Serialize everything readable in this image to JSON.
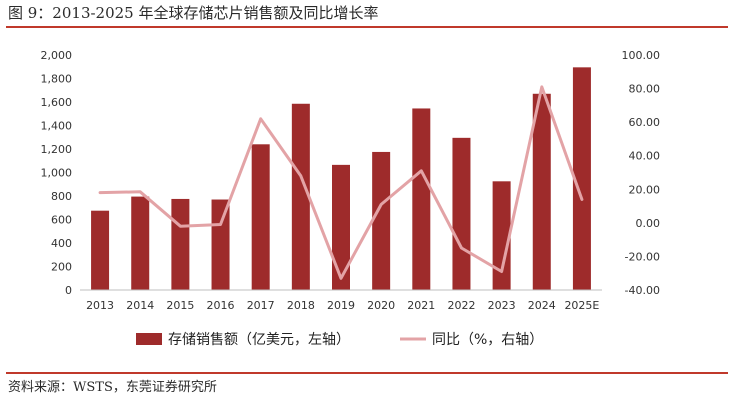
{
  "title": "图 9：2013-2025 年全球存储芯片销售额及同比增长率",
  "source": "资料来源：WSTS，东莞证券研究所",
  "colors": {
    "bar": "#9e2b2b",
    "line": "#e3a3a6",
    "rule": "#c0392b"
  },
  "chart_data": {
    "type": "bar+line",
    "categories": [
      "2013",
      "2014",
      "2015",
      "2016",
      "2017",
      "2018",
      "2019",
      "2020",
      "2021",
      "2022",
      "2023",
      "2024",
      "2025E"
    ],
    "series": [
      {
        "name": "存储销售额（亿美元，左轴）",
        "type": "bar",
        "axis": "left",
        "values": [
          675,
          795,
          775,
          770,
          1240,
          1585,
          1065,
          1175,
          1545,
          1295,
          925,
          1670,
          1895
        ]
      },
      {
        "name": "同比（%，右轴）",
        "type": "line",
        "axis": "right",
        "values": [
          18,
          18.5,
          -2,
          -1,
          62,
          28,
          -33,
          11,
          31,
          -15,
          -29,
          81,
          14
        ]
      }
    ],
    "left_axis": {
      "min": 0,
      "max": 2000,
      "step": 200,
      "tick_labels": [
        "0",
        "200",
        "400",
        "600",
        "800",
        "1,000",
        "1,200",
        "1,400",
        "1,600",
        "1,800",
        "2,000"
      ]
    },
    "right_axis": {
      "min": -40,
      "max": 100,
      "step": 20,
      "tick_labels": [
        "-40.00",
        "-20.00",
        "0.00",
        "20.00",
        "40.00",
        "60.00",
        "80.00",
        "100.00"
      ]
    }
  }
}
